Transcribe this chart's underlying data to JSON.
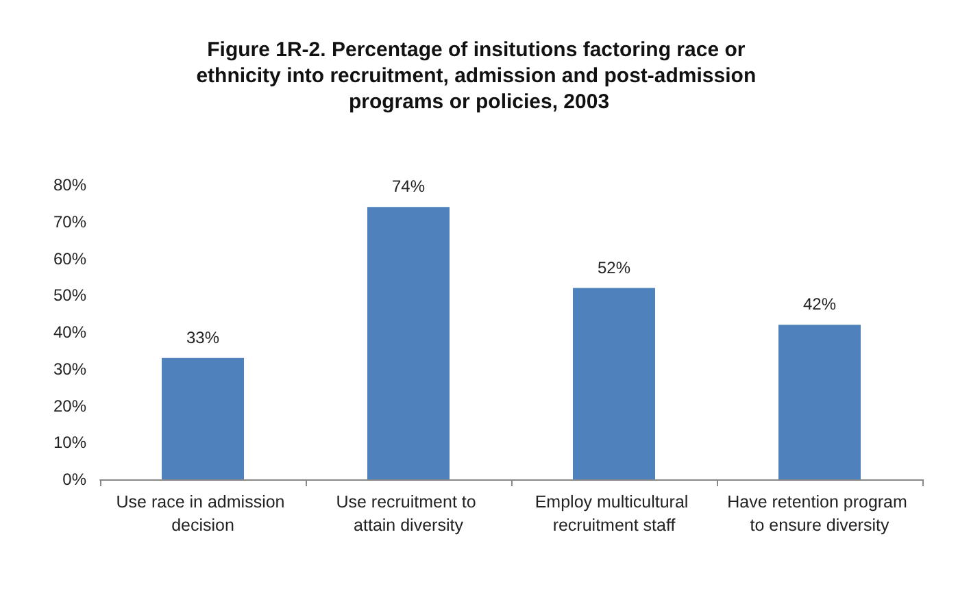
{
  "chart_data": {
    "type": "bar",
    "title": "Figure 1R-2. Percentage of insitutions factoring race or ethnicity into recruitment, admission and post-admission programs or policies, 2003",
    "categories": [
      "Use race in admission decision",
      "Use recruitment to attain diversity",
      "Employ multicultural recruitment staff",
      "Have retention program to ensure diversity"
    ],
    "values": [
      33,
      74,
      52,
      42
    ],
    "value_labels": [
      "33%",
      "74%",
      "52%",
      "42%"
    ],
    "color": "#4f81bd",
    "ylim": [
      0,
      80
    ],
    "yticks": [
      {
        "value": 0,
        "label": "0%"
      },
      {
        "value": 10,
        "label": "10%"
      },
      {
        "value": 20,
        "label": "20%"
      },
      {
        "value": 30,
        "label": "30%"
      },
      {
        "value": 40,
        "label": "40%"
      },
      {
        "value": 50,
        "label": "50%"
      },
      {
        "value": 60,
        "label": "60%"
      },
      {
        "value": 70,
        "label": "70%"
      },
      {
        "value": 80,
        "label": "80%"
      }
    ],
    "grid": false
  }
}
